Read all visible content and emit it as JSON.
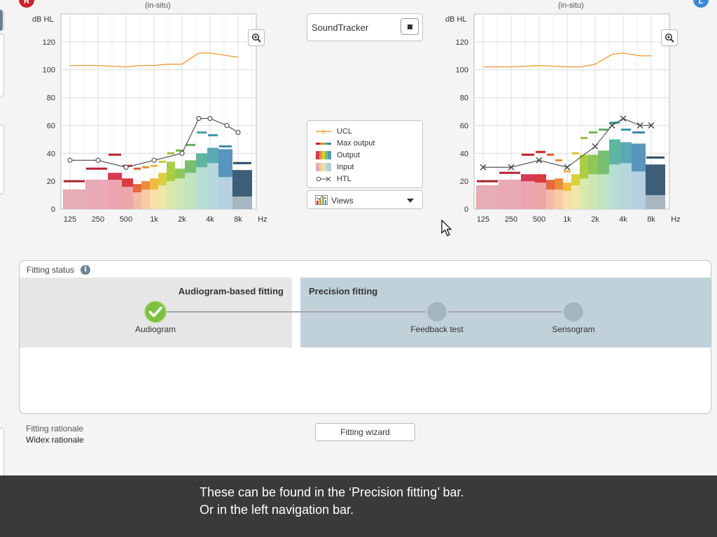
{
  "left_chart": {
    "subtitle": "(in-situ)",
    "y_unit": "dB HL",
    "y_ticks": [
      "120",
      "100",
      "80",
      "60",
      "40",
      "20",
      "0"
    ],
    "x_ticks": [
      "125",
      "250",
      "500",
      "1k",
      "2k",
      "4k",
      "8k"
    ],
    "x_unit": "Hz",
    "htl_marker": "circle",
    "side_color": "#c8232c"
  },
  "right_chart": {
    "subtitle": "(in-situ)",
    "y_unit": "dB HL",
    "y_ticks": [
      "120",
      "100",
      "80",
      "60",
      "40",
      "20",
      "0"
    ],
    "x_ticks": [
      "125",
      "250",
      "500",
      "1k",
      "2k",
      "4k",
      "8k"
    ],
    "x_unit": "Hz",
    "htl_marker": "cross",
    "side_color": "#3c8ad6"
  },
  "soundtracker": {
    "label": "SoundTracker"
  },
  "legend": {
    "items": [
      {
        "label": "UCL",
        "icon": "ucl-line"
      },
      {
        "label": "Max output",
        "icon": "max-output-bars"
      },
      {
        "label": "Output",
        "icon": "output-gradient"
      },
      {
        "label": "Input",
        "icon": "input-gradient"
      },
      {
        "label": "HTL",
        "icon": "htl-markers"
      }
    ]
  },
  "views": {
    "label": "Views",
    "icon": "chart-icon"
  },
  "fitting_status": {
    "title": "Fitting status",
    "left_band_title": "Audiogram-based fitting",
    "right_band_title": "Precision fitting",
    "steps": [
      {
        "label": "Audiogram",
        "state": "done"
      },
      {
        "label": "Feedback test",
        "state": "pending"
      },
      {
        "label": "Sensogram",
        "state": "pending"
      }
    ]
  },
  "rationale": {
    "label": "Fitting rationale",
    "value": "Widex rationale"
  },
  "wizard": {
    "label": "Fitting wizard"
  },
  "caption": {
    "line1": "These can be found in the ‘Precision fitting’ bar.",
    "line2": "Or in the left navigation bar."
  },
  "chart_data": [
    {
      "type": "bar",
      "name": "left-ear",
      "x_labels": [
        "125",
        "250",
        "500",
        "1k",
        "2k",
        "4k",
        "8k"
      ],
      "ylim": [
        0,
        140
      ],
      "ucl": {
        "points": [
          [
            0,
            103
          ],
          [
            1,
            103
          ],
          [
            2,
            102
          ],
          [
            2.5,
            103
          ],
          [
            3,
            103
          ],
          [
            3.5,
            104
          ],
          [
            4,
            104
          ],
          [
            4.6,
            112
          ],
          [
            5,
            112
          ],
          [
            6,
            109
          ]
        ]
      },
      "htl": {
        "points": [
          [
            0,
            35
          ],
          [
            1,
            35
          ],
          [
            2,
            30
          ],
          [
            3,
            35
          ],
          [
            4,
            40
          ],
          [
            4.6,
            65
          ],
          [
            5,
            65
          ],
          [
            5.6,
            60
          ],
          [
            6,
            55
          ]
        ]
      },
      "bars": [
        {
          "x0": -0.25,
          "x1": 0.55,
          "input": 14,
          "output": 14,
          "color": "#c9485e"
        },
        {
          "x0": 0.55,
          "x1": 1.35,
          "input": 21,
          "output": 21,
          "color": "#cf3f5c"
        },
        {
          "x0": 1.35,
          "x1": 1.85,
          "input": 21,
          "output": 26,
          "color": "#d63a52"
        },
        {
          "x0": 1.85,
          "x1": 2.25,
          "input": 16,
          "output": 22,
          "color": "#d83a3f"
        },
        {
          "x0": 2.25,
          "x1": 2.55,
          "input": 12,
          "output": 18,
          "color": "#e4683a"
        },
        {
          "x0": 2.55,
          "x1": 2.85,
          "input": 14,
          "output": 20,
          "color": "#ec8c3a"
        },
        {
          "x0": 2.85,
          "x1": 3.15,
          "input": 14,
          "output": 22,
          "color": "#f1bb3f"
        },
        {
          "x0": 3.15,
          "x1": 3.45,
          "input": 17,
          "output": 26,
          "color": "#d9cf3f"
        },
        {
          "x0": 3.45,
          "x1": 3.75,
          "input": 20,
          "output": 34,
          "color": "#a9cd45"
        },
        {
          "x0": 3.75,
          "x1": 4.1,
          "input": 22,
          "output": 29,
          "color": "#8fc757"
        },
        {
          "x0": 4.1,
          "x1": 4.5,
          "input": 26,
          "output": 35,
          "color": "#77c072"
        },
        {
          "x0": 4.5,
          "x1": 4.9,
          "input": 30,
          "output": 40,
          "color": "#5fb5a0"
        },
        {
          "x0": 4.9,
          "x1": 5.3,
          "input": 33,
          "output": 44,
          "color": "#5aa9b4"
        },
        {
          "x0": 5.3,
          "x1": 5.8,
          "input": 23,
          "output": 43,
          "color": "#5896bd"
        },
        {
          "x0": 5.8,
          "x1": 6.5,
          "input": 9,
          "output": 28,
          "color": "#3c5e78"
        }
      ],
      "max_output": [
        {
          "x0": -0.25,
          "x1": 0.55,
          "y": 20,
          "color": "#a9202d"
        },
        {
          "x0": 0.55,
          "x1": 1.35,
          "y": 29,
          "color": "#b8213b"
        },
        {
          "x0": 1.35,
          "x1": 1.85,
          "y": 39,
          "color": "#c2232f"
        },
        {
          "x0": 1.85,
          "x1": 2.25,
          "y": 31,
          "color": "#c92a2a"
        },
        {
          "x0": 2.25,
          "x1": 2.55,
          "y": 29,
          "color": "#e0582e"
        },
        {
          "x0": 2.55,
          "x1": 2.85,
          "y": 30,
          "color": "#e88932"
        },
        {
          "x0": 2.85,
          "x1": 3.15,
          "y": 31,
          "color": "#eeb33a"
        },
        {
          "x0": 3.15,
          "x1": 3.45,
          "y": 34,
          "color": "#cbc439"
        },
        {
          "x0": 3.45,
          "x1": 3.75,
          "y": 40,
          "color": "#98be3b"
        },
        {
          "x0": 3.75,
          "x1": 4.1,
          "y": 42,
          "color": "#74b64c"
        },
        {
          "x0": 4.1,
          "x1": 4.5,
          "y": 46,
          "color": "#5fae66"
        },
        {
          "x0": 4.5,
          "x1": 4.9,
          "y": 55,
          "color": "#42a0a9"
        },
        {
          "x0": 4.9,
          "x1": 5.3,
          "y": 53,
          "color": "#3f94ae"
        },
        {
          "x0": 5.3,
          "x1": 5.8,
          "y": 45,
          "color": "#3f83ac"
        },
        {
          "x0": 5.8,
          "x1": 6.5,
          "y": 33,
          "color": "#2b4a62"
        }
      ]
    },
    {
      "type": "bar",
      "name": "right-ear",
      "x_labels": [
        "125",
        "250",
        "500",
        "1k",
        "2k",
        "4k",
        "8k"
      ],
      "ylim": [
        0,
        140
      ],
      "ucl": {
        "points": [
          [
            0,
            102
          ],
          [
            1,
            102
          ],
          [
            2,
            103
          ],
          [
            3,
            102
          ],
          [
            3.5,
            102
          ],
          [
            4,
            104
          ],
          [
            4.6,
            111
          ],
          [
            5,
            112
          ],
          [
            5.6,
            110
          ],
          [
            6,
            110
          ]
        ]
      },
      "htl": {
        "points": [
          [
            0,
            30
          ],
          [
            1,
            30
          ],
          [
            2,
            35
          ],
          [
            3,
            30
          ],
          [
            4,
            45
          ],
          [
            4.6,
            60
          ],
          [
            5,
            65
          ],
          [
            5.6,
            60
          ],
          [
            6,
            60
          ]
        ]
      },
      "bars": [
        {
          "x0": -0.25,
          "x1": 0.55,
          "input": 17,
          "output": 17,
          "color": "#c9485e"
        },
        {
          "x0": 0.55,
          "x1": 1.35,
          "input": 21,
          "output": 21,
          "color": "#cf3f5c"
        },
        {
          "x0": 1.35,
          "x1": 1.85,
          "input": 20,
          "output": 25,
          "color": "#d63a52"
        },
        {
          "x0": 1.85,
          "x1": 2.25,
          "input": 19,
          "output": 25,
          "color": "#d83a3f"
        },
        {
          "x0": 2.25,
          "x1": 2.55,
          "input": 14,
          "output": 21,
          "color": "#e4683a"
        },
        {
          "x0": 2.55,
          "x1": 2.85,
          "input": 14,
          "output": 22,
          "color": "#ec8c3a"
        },
        {
          "x0": 2.85,
          "x1": 3.15,
          "input": 13,
          "output": 19,
          "color": "#f1bb3f"
        },
        {
          "x0": 3.15,
          "x1": 3.45,
          "input": 17,
          "output": 25,
          "color": "#d9cf3f"
        },
        {
          "x0": 3.45,
          "x1": 3.75,
          "input": 22,
          "output": 39,
          "color": "#a9cd45"
        },
        {
          "x0": 3.75,
          "x1": 4.1,
          "input": 25,
          "output": 39,
          "color": "#8fc757"
        },
        {
          "x0": 4.1,
          "x1": 4.5,
          "input": 25,
          "output": 42,
          "color": "#77c072"
        },
        {
          "x0": 4.5,
          "x1": 4.9,
          "input": 32,
          "output": 50,
          "color": "#5fb5a0"
        },
        {
          "x0": 4.9,
          "x1": 5.3,
          "input": 33,
          "output": 48,
          "color": "#5aa9b4"
        },
        {
          "x0": 5.3,
          "x1": 5.8,
          "input": 27,
          "output": 47,
          "color": "#5896bd"
        },
        {
          "x0": 5.8,
          "x1": 6.5,
          "input": 10,
          "output": 32,
          "color": "#3c5e78"
        }
      ],
      "max_output": [
        {
          "x0": -0.25,
          "x1": 0.55,
          "y": 20,
          "color": "#a9202d"
        },
        {
          "x0": 0.55,
          "x1": 1.35,
          "y": 26,
          "color": "#b8213b"
        },
        {
          "x0": 1.35,
          "x1": 1.85,
          "y": 39,
          "color": "#c2232f"
        },
        {
          "x0": 1.85,
          "x1": 2.25,
          "y": 41,
          "color": "#c92a2a"
        },
        {
          "x0": 2.25,
          "x1": 2.55,
          "y": 39,
          "color": "#e0582e"
        },
        {
          "x0": 2.55,
          "x1": 2.85,
          "y": 35,
          "color": "#e88932"
        },
        {
          "x0": 2.85,
          "x1": 3.15,
          "y": 27,
          "color": "#eeb33a"
        },
        {
          "x0": 3.15,
          "x1": 3.45,
          "y": 40,
          "color": "#cbc439"
        },
        {
          "x0": 3.45,
          "x1": 3.75,
          "y": 51,
          "color": "#98be3b"
        },
        {
          "x0": 3.75,
          "x1": 4.1,
          "y": 55,
          "color": "#74b64c"
        },
        {
          "x0": 4.1,
          "x1": 4.5,
          "y": 57,
          "color": "#5fae66"
        },
        {
          "x0": 4.5,
          "x1": 4.9,
          "y": 62,
          "color": "#42a0a9"
        },
        {
          "x0": 4.9,
          "x1": 5.3,
          "y": 57,
          "color": "#3f94ae"
        },
        {
          "x0": 5.3,
          "x1": 5.8,
          "y": 55,
          "color": "#3f83ac"
        },
        {
          "x0": 5.8,
          "x1": 6.5,
          "y": 37,
          "color": "#2b4a62"
        }
      ]
    }
  ]
}
